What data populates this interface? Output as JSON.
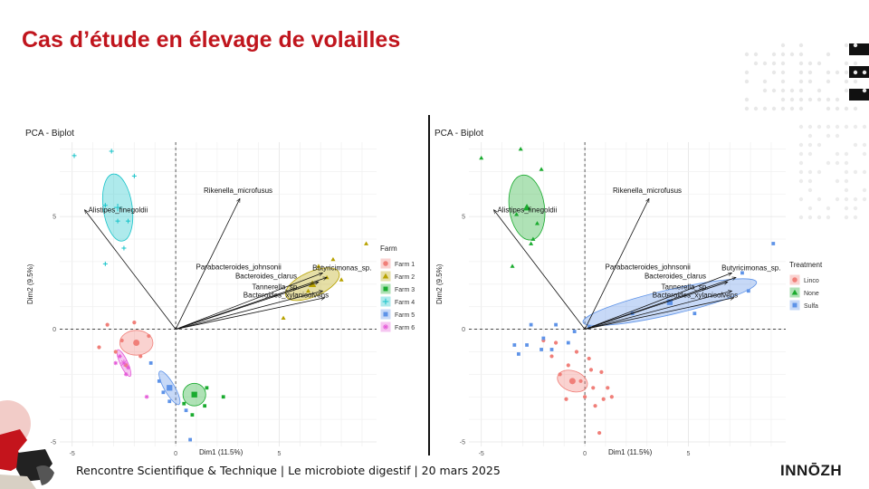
{
  "slide": {
    "title": "Cas d’étude en élevage de volailles",
    "footer": "Rencontre Scientifique  & Technique  | Le microbiote digestif  | 20 mars 2025",
    "logo": "INNŌZH"
  },
  "colors": {
    "title": "#c0151d",
    "Farm 1": "#f07f79",
    "Farm 2": "#b8a200",
    "Farm 3": "#1aab2f",
    "Farm 4": "#16c3c9",
    "Farm 5": "#5e93e8",
    "Farm 6": "#e55bd8",
    "Linco": "#f07f79",
    "None": "#1aab2f",
    "Sulfa": "#5e93e8"
  },
  "chart_data": [
    {
      "type": "scatter",
      "title": "PCA - Biplot",
      "xlabel": "Dim1 (11.5%)",
      "ylabel": "Dim2 (9.5%)",
      "xlim": [
        -5.6,
        9.7
      ],
      "ylim": [
        -5.2,
        8.3
      ],
      "x_ticks": [
        -5,
        0,
        5
      ],
      "y_ticks": [
        -5,
        0,
        5
      ],
      "grid": true,
      "legend_title": "Farm",
      "legend_position": "right",
      "series": [
        {
          "name": "Farm 1",
          "marker": "circle",
          "points": [
            [
              -2.6,
              -0.5
            ],
            [
              -3.7,
              -0.8
            ],
            [
              -2.9,
              -1.0
            ],
            [
              -1.3,
              -0.3
            ],
            [
              -2.0,
              0.3
            ],
            [
              -1.7,
              -1.2
            ],
            [
              -2.4,
              -1.6
            ],
            [
              -3.3,
              0.2
            ]
          ],
          "ellipse": {
            "cx": -1.9,
            "cy": -0.6,
            "rx": 0.8,
            "ry": 0.55,
            "angle": 0
          }
        },
        {
          "name": "Farm 2",
          "marker": "triangle",
          "points": [
            [
              9.2,
              3.8
            ],
            [
              6.9,
              2.8
            ],
            [
              7.3,
              2.3
            ],
            [
              5.2,
              0.5
            ],
            [
              7.6,
              3.1
            ],
            [
              6.4,
              1.7
            ],
            [
              8.0,
              2.2
            ]
          ],
          "ellipse": {
            "cx": 6.6,
            "cy": 2.0,
            "rx": 1.4,
            "ry": 0.55,
            "angle": -24
          }
        },
        {
          "name": "Farm 3",
          "marker": "square",
          "points": [
            [
              0.9,
              -2.9
            ],
            [
              1.5,
              -2.6
            ],
            [
              2.3,
              -3.0
            ],
            [
              1.4,
              -3.4
            ],
            [
              0.8,
              -3.8
            ],
            [
              0.4,
              -3.3
            ]
          ],
          "ellipse": {
            "cx": 0.9,
            "cy": -2.9,
            "rx": 0.55,
            "ry": 0.5,
            "angle": 0
          }
        },
        {
          "name": "Farm 4",
          "marker": "plus",
          "points": [
            [
              -4.9,
              7.7
            ],
            [
              -3.1,
              7.9
            ],
            [
              -2.0,
              6.8
            ],
            [
              -3.4,
              5.5
            ],
            [
              -2.8,
              4.8
            ],
            [
              -2.3,
              4.8
            ],
            [
              -2.5,
              3.6
            ],
            [
              -3.4,
              2.9
            ]
          ],
          "ellipse": {
            "cx": -2.8,
            "cy": 5.4,
            "rx": 0.7,
            "ry": 1.5,
            "angle": -8
          }
        },
        {
          "name": "Farm 5",
          "marker": "square",
          "points": [
            [
              -0.6,
              -2.8
            ],
            [
              -0.3,
              -3.2
            ],
            [
              0.7,
              -4.9
            ],
            [
              -1.2,
              -1.5
            ],
            [
              -0.8,
              -2.3
            ],
            [
              0.5,
              -3.6
            ]
          ],
          "ellipse": {
            "cx": -0.3,
            "cy": -2.6,
            "rx": 0.25,
            "ry": 0.85,
            "angle": -30
          }
        },
        {
          "name": "Farm 6",
          "marker": "asterisk",
          "points": [
            [
              -2.7,
              -1.2
            ],
            [
              -2.3,
              -1.7
            ],
            [
              -2.9,
              -1.5
            ],
            [
              -1.4,
              -3.0
            ],
            [
              -2.4,
              -2.0
            ]
          ],
          "ellipse": {
            "cx": -2.5,
            "cy": -1.5,
            "rx": 0.18,
            "ry": 0.65,
            "angle": -25
          }
        }
      ],
      "vectors": [
        {
          "label": "Rikenella_microfusus",
          "x": 3.1,
          "y": 5.8
        },
        {
          "label": "Alistipes_finegoldii",
          "x": -4.4,
          "y": 5.3
        },
        {
          "label": "Parabacteroides_johnsonii",
          "x": 7.1,
          "y": 2.5
        },
        {
          "label": "Butyricimonas_sp.",
          "x": 7.3,
          "y": 2.3
        },
        {
          "label": "Bacteroides_clarus",
          "x": 6.9,
          "y": 2.1
        },
        {
          "label": "Tannerella_sp.",
          "x": 7.1,
          "y": 1.7
        },
        {
          "label": "Bacteroides_xylanisolvens",
          "x": 7.2,
          "y": 1.4
        }
      ]
    },
    {
      "type": "scatter",
      "title": "PCA - Biplot",
      "xlabel": "Dim1 (11.5%)",
      "ylabel": "Dim2 (9.5%)",
      "xlim": [
        -5.6,
        9.7
      ],
      "ylim": [
        -5.2,
        8.3
      ],
      "x_ticks": [
        -5,
        0,
        5
      ],
      "y_ticks": [
        -5,
        0,
        5
      ],
      "grid": true,
      "legend_title": "Treatment",
      "legend_position": "right",
      "series": [
        {
          "name": "Linco",
          "marker": "circle",
          "points": [
            [
              -0.8,
              -1.6
            ],
            [
              -1.2,
              -2.0
            ],
            [
              0.2,
              -1.3
            ],
            [
              0.4,
              -2.6
            ],
            [
              0.9,
              -3.1
            ],
            [
              0.7,
              -4.6
            ],
            [
              0.5,
              -3.4
            ],
            [
              1.1,
              -2.6
            ],
            [
              -0.4,
              -1.0
            ],
            [
              -1.6,
              -1.2
            ],
            [
              -0.9,
              -3.1
            ],
            [
              -2.0,
              -0.5
            ],
            [
              0.0,
              -3.0
            ],
            [
              0.3,
              -1.8
            ],
            [
              -0.2,
              -2.3
            ],
            [
              0.8,
              -1.9
            ],
            [
              1.3,
              -3.0
            ],
            [
              -1.4,
              -0.6
            ]
          ],
          "ellipse": {
            "cx": -0.6,
            "cy": -2.3,
            "rx": 0.75,
            "ry": 0.45,
            "angle": 20
          }
        },
        {
          "name": "None",
          "marker": "triangle",
          "points": [
            [
              -5.0,
              7.6
            ],
            [
              -3.1,
              8.0
            ],
            [
              -2.1,
              7.1
            ],
            [
              -2.8,
              5.4
            ],
            [
              -3.3,
              5.1
            ],
            [
              -2.5,
              4.0
            ],
            [
              -2.6,
              3.8
            ],
            [
              -3.5,
              2.8
            ],
            [
              -2.3,
              4.7
            ]
          ],
          "ellipse": {
            "cx": -2.8,
            "cy": 5.4,
            "rx": 0.85,
            "ry": 1.45,
            "angle": -8
          }
        },
        {
          "name": "Sulfa",
          "marker": "square",
          "points": [
            [
              9.1,
              3.8
            ],
            [
              7.6,
              2.5
            ],
            [
              7.9,
              1.7
            ],
            [
              5.3,
              0.7
            ],
            [
              2.3,
              0.7
            ],
            [
              -2.0,
              -0.4
            ],
            [
              -2.8,
              -0.7
            ],
            [
              -1.6,
              -0.9
            ],
            [
              -3.4,
              -0.7
            ],
            [
              -2.6,
              0.2
            ],
            [
              -1.4,
              0.2
            ],
            [
              -0.5,
              -0.1
            ],
            [
              0.2,
              0.1
            ],
            [
              -0.8,
              -0.6
            ],
            [
              -3.2,
              -1.1
            ],
            [
              -2.1,
              -0.9
            ]
          ],
          "ellipse": {
            "cx": 4.1,
            "cy": 1.2,
            "rx": 4.3,
            "ry": 0.55,
            "angle": -13
          }
        }
      ],
      "vectors": [
        {
          "label": "Rikenella_microfusus",
          "x": 3.1,
          "y": 5.8
        },
        {
          "label": "Alistipes_finegoldii",
          "x": -4.4,
          "y": 5.3
        },
        {
          "label": "Parabacteroides_johnsonii",
          "x": 7.1,
          "y": 2.5
        },
        {
          "label": "Butyricimonas_sp.",
          "x": 7.3,
          "y": 2.3
        },
        {
          "label": "Bacteroides_clarus",
          "x": 6.9,
          "y": 2.1
        },
        {
          "label": "Tannerella_sp.",
          "x": 7.1,
          "y": 1.7
        },
        {
          "label": "Bacteroides_xylanisolvens",
          "x": 7.2,
          "y": 1.4
        }
      ]
    }
  ]
}
